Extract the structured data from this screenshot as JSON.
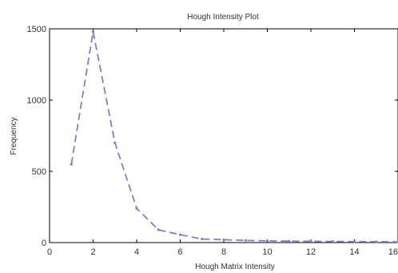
{
  "chart_data": {
    "type": "line",
    "title": "Hough Intensity Plot",
    "xlabel": "Hough Matrix Intensity",
    "ylabel": "Frequency",
    "xlim": [
      0,
      16
    ],
    "ylim": [
      0,
      1500
    ],
    "xticks": [
      0,
      2,
      4,
      6,
      8,
      10,
      12,
      14,
      16
    ],
    "yticks": [
      0,
      500,
      1000,
      1500
    ],
    "xtick_labels": [
      "0",
      "2",
      "4",
      "6",
      "8",
      "10",
      "12",
      "14",
      "16"
    ],
    "ytick_labels": [
      "0",
      "500",
      "1000",
      "1500"
    ],
    "grid": false,
    "series": [
      {
        "color": "#7f7fd0",
        "line_style": "dashed",
        "marker": "dot",
        "x": [
          1,
          2,
          3,
          4,
          5,
          6,
          7,
          8,
          9,
          10,
          11,
          12,
          13,
          14,
          15,
          16
        ],
        "values": [
          550,
          1480,
          700,
          240,
          90,
          55,
          25,
          20,
          15,
          12,
          10,
          9,
          8,
          7,
          6,
          5
        ]
      }
    ]
  }
}
